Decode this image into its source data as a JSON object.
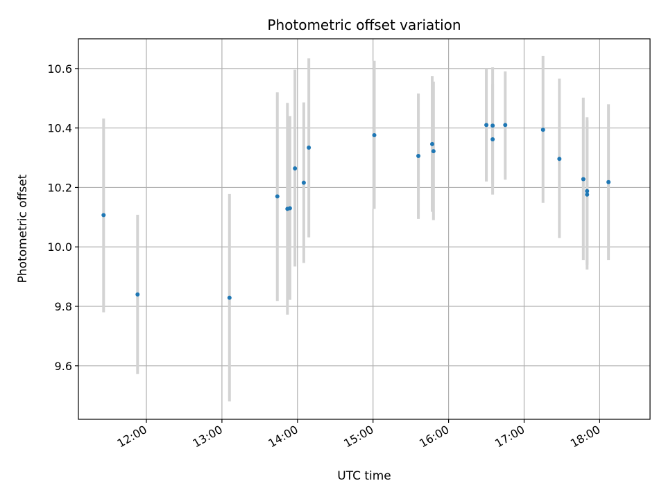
{
  "chart_data": {
    "type": "scatter",
    "title": "Photometric offset variation",
    "xlabel": "UTC time",
    "ylabel": "Photometric offset",
    "x_ticks": [
      "12:00",
      "13:00",
      "14:00",
      "15:00",
      "16:00",
      "17:00",
      "18:00"
    ],
    "y_ticks": [
      "9.6",
      "9.8",
      "10.0",
      "10.2",
      "10.4",
      "10.6"
    ],
    "xlim": [
      "11:06",
      "18:40"
    ],
    "ylim": [
      9.42,
      10.7
    ],
    "grid": true,
    "point_color": "#1f77b4",
    "errorbar_color": "#d3d3d3",
    "points": [
      {
        "t": "11:26",
        "y": 10.107,
        "lo": 9.78,
        "hi": 10.432
      },
      {
        "t": "11:53",
        "y": 9.84,
        "lo": 9.572,
        "hi": 10.108
      },
      {
        "t": "13:06",
        "y": 9.829,
        "lo": 9.48,
        "hi": 10.178
      },
      {
        "t": "13:44",
        "y": 10.17,
        "lo": 9.818,
        "hi": 10.52
      },
      {
        "t": "13:52",
        "y": 10.128,
        "lo": 9.772,
        "hi": 10.484
      },
      {
        "t": "13:54",
        "y": 10.13,
        "lo": 9.822,
        "hi": 10.44
      },
      {
        "t": "13:58",
        "y": 10.264,
        "lo": 9.934,
        "hi": 10.596
      },
      {
        "t": "14:05",
        "y": 10.216,
        "lo": 9.946,
        "hi": 10.486
      },
      {
        "t": "14:09",
        "y": 10.334,
        "lo": 10.032,
        "hi": 10.634
      },
      {
        "t": "15:01",
        "y": 10.376,
        "lo": 10.128,
        "hi": 10.626
      },
      {
        "t": "15:36",
        "y": 10.306,
        "lo": 10.094,
        "hi": 10.516
      },
      {
        "t": "15:47",
        "y": 10.346,
        "lo": 10.118,
        "hi": 10.574
      },
      {
        "t": "15:48",
        "y": 10.322,
        "lo": 10.09,
        "hi": 10.556
      },
      {
        "t": "16:30",
        "y": 10.41,
        "lo": 10.22,
        "hi": 10.6
      },
      {
        "t": "16:35",
        "y": 10.362,
        "lo": 10.176,
        "hi": 10.548
      },
      {
        "t": "16:35",
        "y": 10.408,
        "lo": 10.212,
        "hi": 10.604
      },
      {
        "t": "16:45",
        "y": 10.41,
        "lo": 10.226,
        "hi": 10.59
      },
      {
        "t": "17:15",
        "y": 10.394,
        "lo": 10.148,
        "hi": 10.642
      },
      {
        "t": "17:28",
        "y": 10.296,
        "lo": 10.03,
        "hi": 10.566
      },
      {
        "t": "17:47",
        "y": 10.228,
        "lo": 9.956,
        "hi": 10.502
      },
      {
        "t": "17:50",
        "y": 10.176,
        "lo": 9.924,
        "hi": 10.426
      },
      {
        "t": "17:50",
        "y": 10.188,
        "lo": 9.94,
        "hi": 10.436
      },
      {
        "t": "18:07",
        "y": 10.218,
        "lo": 9.956,
        "hi": 10.48
      }
    ]
  }
}
